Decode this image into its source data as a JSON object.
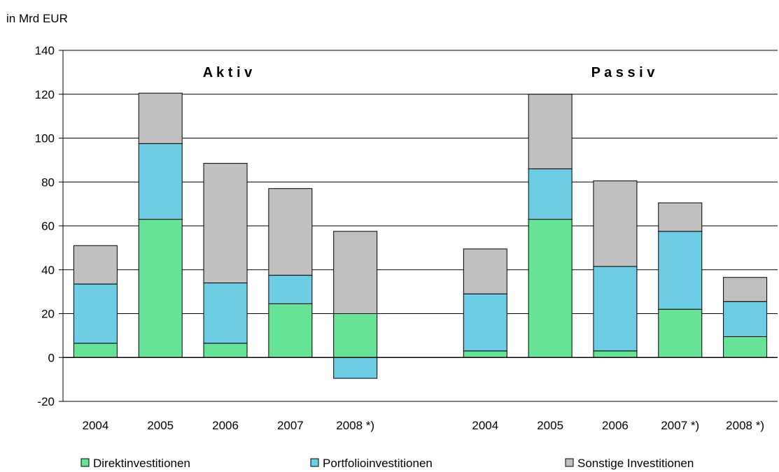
{
  "chart_data": {
    "type": "bar",
    "stacked": true,
    "ylabel": "in Mrd EUR",
    "ylim": [
      -20,
      140
    ],
    "yticks": [
      -20,
      0,
      20,
      40,
      60,
      80,
      100,
      120,
      140
    ],
    "grid": true,
    "legend_position": "bottom",
    "groups": [
      {
        "title": "A k t i v",
        "categories": [
          "2004",
          "2005",
          "2006",
          "2007",
          "2008 *)"
        ],
        "series": [
          {
            "name": "Direktinvestitionen",
            "values": [
              6.5,
              63,
              6.5,
              24.5,
              20
            ]
          },
          {
            "name": "Portfolioinvestitionen",
            "values": [
              27,
              34.5,
              27.5,
              13,
              -9.5
            ]
          },
          {
            "name": "Sonstige Investitionen",
            "values": [
              17.5,
              23,
              54.5,
              39.5,
              37.5
            ]
          }
        ]
      },
      {
        "title": "P a s s i v",
        "categories": [
          "2004",
          "2005",
          "2006",
          "2007 *)",
          "2008 *)"
        ],
        "series": [
          {
            "name": "Direktinvestitionen",
            "values": [
              3,
              63,
              3,
              22,
              9.5
            ]
          },
          {
            "name": "Portfolioinvestitionen",
            "values": [
              26,
              23,
              38.5,
              35.5,
              16
            ]
          },
          {
            "name": "Sonstige Investitionen",
            "values": [
              20.5,
              34,
              39,
              13,
              11
            ]
          }
        ]
      }
    ],
    "colors": {
      "Direktinvestitionen": "#66e397",
      "Portfolioinvestitionen": "#6dcde4",
      "Sonstige Investitionen": "#c0c0c0"
    }
  }
}
